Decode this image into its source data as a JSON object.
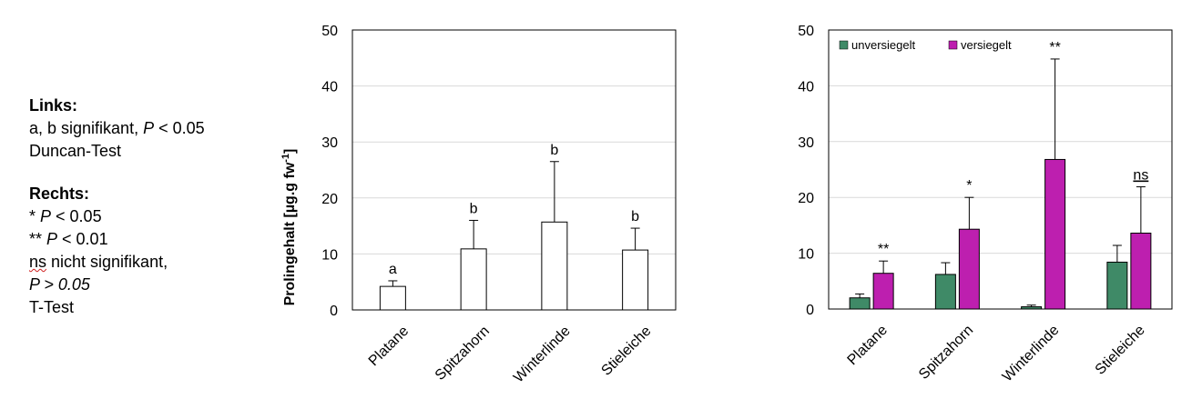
{
  "notes": {
    "left_heading": "Links:",
    "left_sig_prefix": "a, b signifikant, ",
    "left_sig_p": "P",
    "left_sig_suffix": " < 0.05",
    "left_test": "Duncan-Test",
    "right_heading": "Rechts:",
    "right_l1_prefix": "* ",
    "right_l1_p": "P",
    "right_l1_suffix": " < 0.05",
    "right_l2_prefix": "** ",
    "right_l2_p": "P",
    "right_l2_suffix": " < 0.01",
    "right_ns_abbr": "ns",
    "right_ns_text": " nicht signifikant,",
    "right_ns_p": "P > 0.05",
    "right_test": "T-Test"
  },
  "chart_data": [
    {
      "type": "bar",
      "categories": [
        "Platane",
        "Spitzahorn",
        "Winterlinde",
        "Stieleiche"
      ],
      "series": [
        {
          "values": [
            4.2,
            10.9,
            15.7,
            10.7
          ],
          "error": [
            1.0,
            5.1,
            10.8,
            3.9
          ],
          "color": "#ffffff"
        }
      ],
      "labels": [
        "a",
        "b",
        "b",
        "b"
      ],
      "ylabel": "Prolingehalt [µg.g fw-1]",
      "ylabel_main": "Prolingehalt [µg.g fw",
      "ylabel_sup": "-1",
      "ylabel_end": "]",
      "ylim": [
        0,
        50
      ],
      "yticks": [
        0,
        10,
        20,
        30,
        40,
        50
      ],
      "grid": true
    },
    {
      "type": "bar",
      "categories": [
        "Platane",
        "Spitzahorn",
        "Winterlinde",
        "Stieleiche"
      ],
      "series": [
        {
          "name": "unversiegelt",
          "values": [
            2.0,
            6.2,
            0.4,
            8.4
          ],
          "error": [
            0.7,
            2.1,
            0.3,
            3.0
          ],
          "color": "#3f8a67"
        },
        {
          "name": "versiegelt",
          "values": [
            6.4,
            14.3,
            26.8,
            13.6
          ],
          "error": [
            2.2,
            5.7,
            18.0,
            8.3
          ],
          "color": "#bd1faf"
        }
      ],
      "labels": [
        "**",
        "*",
        "**",
        "ns"
      ],
      "ylim": [
        0,
        50
      ],
      "yticks": [
        0,
        10,
        20,
        30,
        40,
        50
      ],
      "grid": true,
      "legend": "top-left"
    }
  ]
}
